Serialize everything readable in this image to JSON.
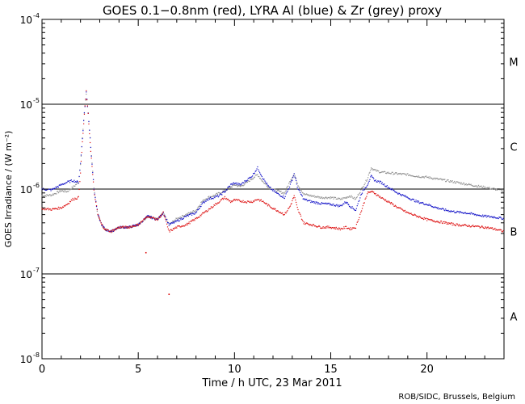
{
  "chart_data": {
    "type": "scatter",
    "title": "GOES 0.1−0.8nm (red), LYRA Al (blue) & Zr (grey) proxy",
    "xlabel": "Time / h UTC, 23 Mar 2011",
    "ylabel": "GOES Irradiance / (W m⁻²)",
    "xlim": [
      0,
      24
    ],
    "ylim_log10": [
      -8,
      -4
    ],
    "y_scale": "log",
    "xticks": [
      0,
      5,
      10,
      15,
      20
    ],
    "xtick_labels": [
      "0",
      "5",
      "10",
      "15",
      "20"
    ],
    "yticks_log10": [
      -8,
      -7,
      -6,
      -5,
      -4
    ],
    "ytick_labels": [
      {
        "base": "10",
        "exp": "-8"
      },
      {
        "base": "10",
        "exp": "-7"
      },
      {
        "base": "10",
        "exp": "-6"
      },
      {
        "base": "10",
        "exp": "-5"
      },
      {
        "base": "10",
        "exp": "-4"
      }
    ],
    "flare_class_lines_log10": [
      -7,
      -6,
      -5
    ],
    "flare_classes": [
      {
        "label": "M",
        "log10": -4.5
      },
      {
        "label": "C",
        "log10": -5.5
      },
      {
        "label": "B",
        "log10": -6.5
      },
      {
        "label": "A",
        "log10": -7.5
      }
    ],
    "series": [
      {
        "name": "LYRA Zr (grey) proxy",
        "color": "#909090",
        "x": [
          0,
          0.5,
          1,
          1.3,
          1.6,
          1.9,
          2.0,
          2.1,
          2.2,
          2.3,
          2.4,
          2.5,
          2.7,
          2.9,
          3.1,
          3.3,
          3.6,
          4.0,
          4.5,
          5.0,
          5.5,
          6.0,
          6.3,
          6.6,
          7.0,
          7.5,
          8.0,
          8.3,
          8.6,
          8.9,
          9.2,
          9.5,
          9.8,
          10.0,
          10.3,
          10.6,
          10.9,
          11.2,
          11.5,
          11.8,
          12.2,
          12.6,
          12.9,
          13.1,
          13.3,
          13.6,
          14.0,
          14.5,
          15.0,
          15.5,
          15.8,
          16.0,
          16.3,
          16.6,
          16.9,
          17.1,
          17.3,
          17.6,
          18.0,
          18.5,
          19.0,
          19.5,
          20.0,
          20.5,
          21.0,
          21.5,
          22.0,
          22.5,
          23.0,
          23.5,
          24.0
        ],
        "log10": [
          -6.08,
          -6.07,
          -6.02,
          -6.03,
          -5.98,
          -5.92,
          -5.7,
          -5.4,
          -5.1,
          -4.88,
          -5.1,
          -5.4,
          -6.0,
          -6.3,
          -6.42,
          -6.48,
          -6.5,
          -6.45,
          -6.45,
          -6.42,
          -6.32,
          -6.36,
          -6.28,
          -6.42,
          -6.35,
          -6.3,
          -6.25,
          -6.15,
          -6.1,
          -6.08,
          -6.05,
          -6.02,
          -5.98,
          -5.95,
          -5.97,
          -5.93,
          -5.88,
          -5.83,
          -5.92,
          -5.98,
          -6.02,
          -6.05,
          -5.9,
          -5.82,
          -5.95,
          -6.06,
          -6.08,
          -6.1,
          -6.1,
          -6.12,
          -6.1,
          -6.08,
          -6.12,
          -6.0,
          -5.88,
          -5.75,
          -5.78,
          -5.8,
          -5.81,
          -5.82,
          -5.83,
          -5.85,
          -5.86,
          -5.88,
          -5.9,
          -5.92,
          -5.94,
          -5.96,
          -5.98,
          -6.0,
          -6.02
        ]
      },
      {
        "name": "LYRA Al (blue) proxy",
        "color": "#1515c8",
        "x": [
          0,
          0.5,
          1,
          1.3,
          1.6,
          1.9,
          2.0,
          2.1,
          2.2,
          2.3,
          2.4,
          2.5,
          2.7,
          2.9,
          3.1,
          3.3,
          3.6,
          4.0,
          4.5,
          5.0,
          5.5,
          6.0,
          6.3,
          6.6,
          7.0,
          7.5,
          8.0,
          8.3,
          8.6,
          8.9,
          9.2,
          9.5,
          9.8,
          10.0,
          10.3,
          10.6,
          10.9,
          11.2,
          11.5,
          11.8,
          12.2,
          12.6,
          12.9,
          13.1,
          13.3,
          13.6,
          14.0,
          14.5,
          15.0,
          15.5,
          15.8,
          16.0,
          16.3,
          16.6,
          16.9,
          17.1,
          17.3,
          17.6,
          18.0,
          18.5,
          19.0,
          19.5,
          20.0,
          20.5,
          21.0,
          21.5,
          22.0,
          22.5,
          23.0,
          23.5,
          24.0
        ],
        "log10": [
          -6.0,
          -6.01,
          -5.95,
          -5.92,
          -5.9,
          -5.92,
          -5.7,
          -5.4,
          -5.1,
          -4.86,
          -5.1,
          -5.4,
          -6.0,
          -6.3,
          -6.42,
          -6.48,
          -6.5,
          -6.45,
          -6.45,
          -6.42,
          -6.32,
          -6.36,
          -6.28,
          -6.42,
          -6.38,
          -6.32,
          -6.28,
          -6.18,
          -6.12,
          -6.1,
          -6.08,
          -6.03,
          -5.95,
          -5.93,
          -5.95,
          -5.9,
          -5.85,
          -5.75,
          -5.88,
          -5.98,
          -6.05,
          -6.1,
          -5.95,
          -5.82,
          -6.0,
          -6.12,
          -6.15,
          -6.17,
          -6.18,
          -6.2,
          -6.15,
          -6.2,
          -6.25,
          -6.05,
          -5.95,
          -5.85,
          -5.9,
          -5.92,
          -5.98,
          -6.05,
          -6.1,
          -6.15,
          -6.18,
          -6.22,
          -6.25,
          -6.27,
          -6.28,
          -6.3,
          -6.32,
          -6.33,
          -6.35
        ]
      },
      {
        "name": "GOES 0.1−0.8nm (red)",
        "color": "#dd1010",
        "x": [
          0,
          0.5,
          1,
          1.3,
          1.6,
          1.9,
          2.0,
          2.1,
          2.2,
          2.3,
          2.4,
          2.5,
          2.7,
          2.9,
          3.1,
          3.3,
          3.6,
          4.0,
          4.5,
          5.0,
          5.5,
          6.0,
          6.3,
          6.6,
          7.0,
          7.5,
          8.0,
          8.3,
          8.6,
          8.9,
          9.2,
          9.5,
          9.8,
          10.0,
          10.3,
          10.6,
          10.9,
          11.2,
          11.5,
          11.8,
          12.2,
          12.6,
          12.9,
          13.1,
          13.3,
          13.6,
          14.0,
          14.5,
          15.0,
          15.5,
          15.8,
          16.0,
          16.3,
          16.6,
          16.9,
          17.1,
          17.3,
          17.6,
          18.0,
          18.5,
          19.0,
          19.5,
          20.0,
          20.5,
          21.0,
          21.5,
          22.0,
          22.5,
          23.0,
          23.5,
          24.0
        ],
        "log10": [
          -6.23,
          -6.24,
          -6.22,
          -6.18,
          -6.12,
          -6.1,
          -5.8,
          -5.45,
          -5.12,
          -4.85,
          -5.12,
          -5.45,
          -6.02,
          -6.3,
          -6.42,
          -6.48,
          -6.5,
          -6.45,
          -6.45,
          -6.42,
          -6.32,
          -6.36,
          -6.28,
          -6.5,
          -6.45,
          -6.42,
          -6.35,
          -6.3,
          -6.25,
          -6.2,
          -6.15,
          -6.1,
          -6.15,
          -6.13,
          -6.14,
          -6.15,
          -6.15,
          -6.12,
          -6.15,
          -6.2,
          -6.25,
          -6.3,
          -6.2,
          -6.08,
          -6.25,
          -6.4,
          -6.42,
          -6.45,
          -6.45,
          -6.47,
          -6.45,
          -6.47,
          -6.45,
          -6.25,
          -6.05,
          -6.03,
          -6.05,
          -6.1,
          -6.15,
          -6.22,
          -6.28,
          -6.32,
          -6.36,
          -6.38,
          -6.4,
          -6.42,
          -6.43,
          -6.44,
          -6.45,
          -6.47,
          -6.5
        ]
      }
    ],
    "outlier_points": [
      {
        "x": 5.4,
        "log10": -6.75,
        "color": "#dd1010"
      },
      {
        "x": 6.6,
        "log10": -7.24,
        "color": "#dd1010"
      }
    ],
    "annotation": "ROB/SIDC, Brussels, Belgium"
  }
}
